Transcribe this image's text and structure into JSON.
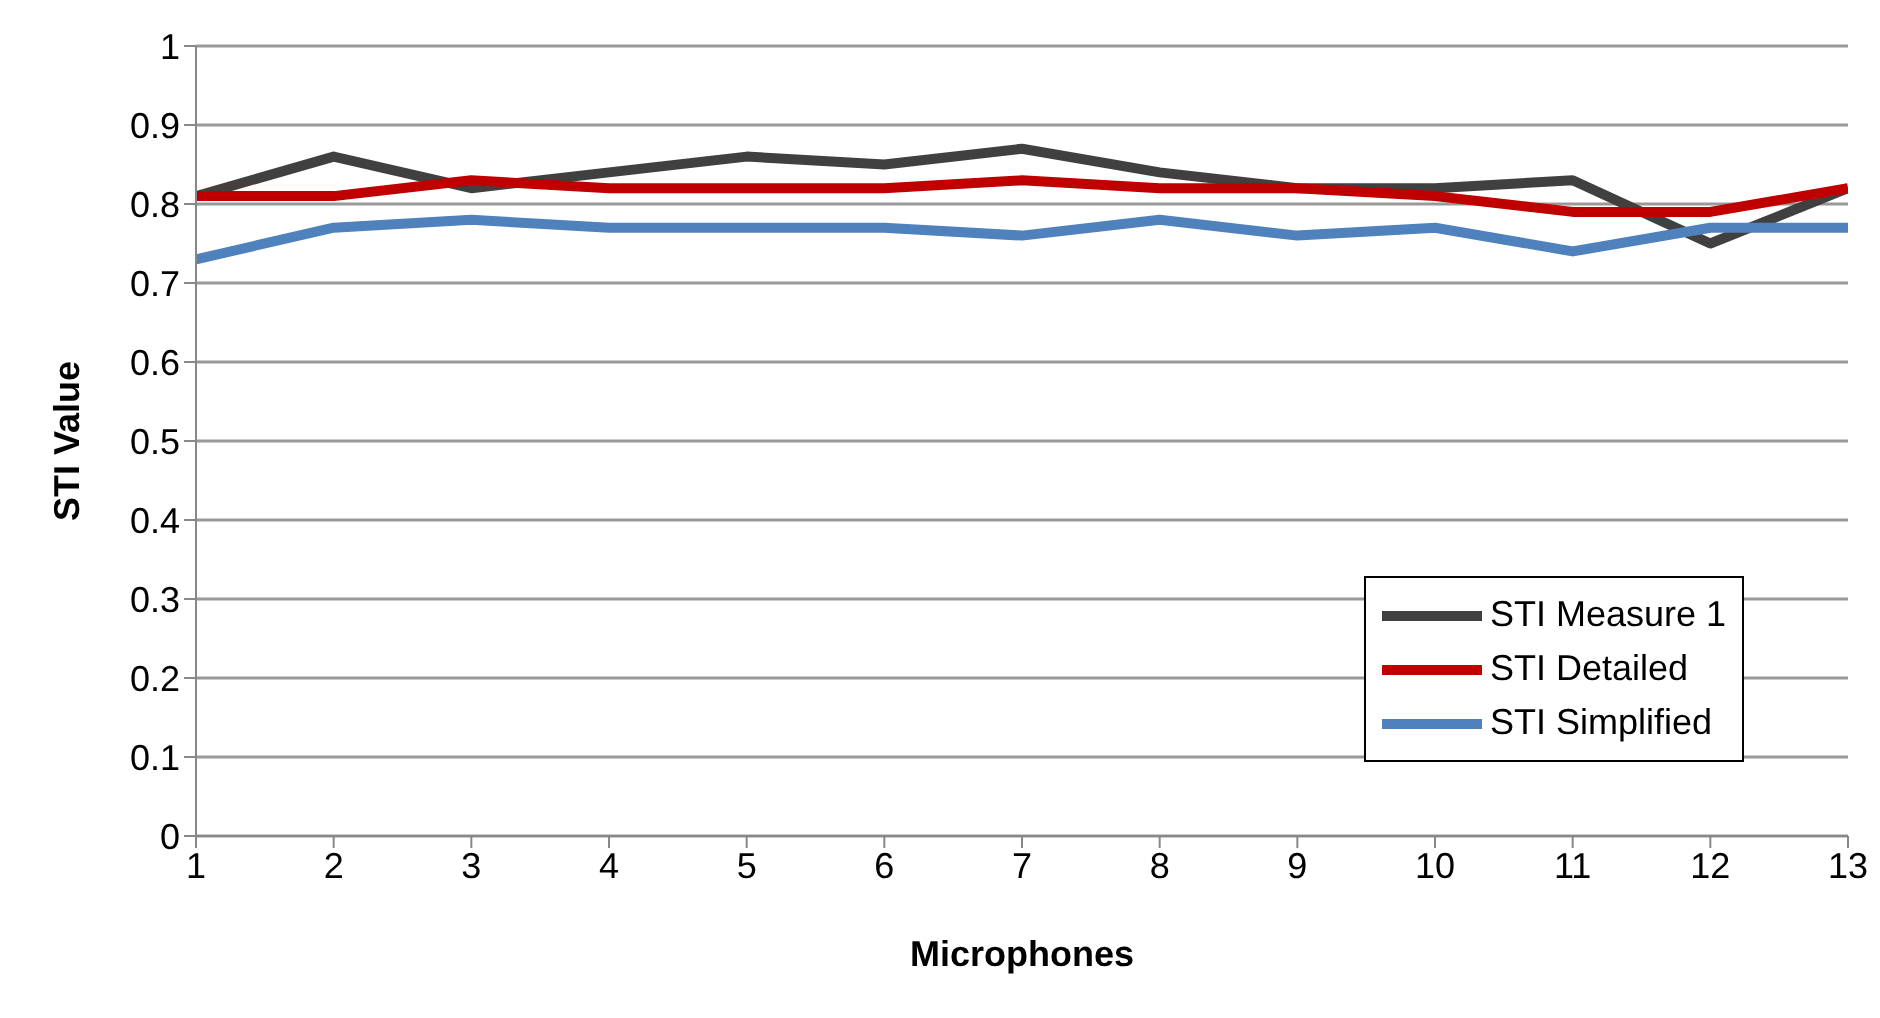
{
  "chart_data": {
    "type": "line",
    "xlabel": "Microphones",
    "ylabel": "STI Value",
    "x": [
      1,
      2,
      3,
      4,
      5,
      6,
      7,
      8,
      9,
      10,
      11,
      12,
      13
    ],
    "xlim": [
      1,
      13
    ],
    "xticks": [
      1,
      2,
      3,
      4,
      5,
      6,
      7,
      8,
      9,
      10,
      11,
      12,
      13
    ],
    "ylim": [
      0,
      1
    ],
    "yticks": [
      0,
      0.1,
      0.2,
      0.3,
      0.4,
      0.5,
      0.6,
      0.7,
      0.8,
      0.9,
      1
    ],
    "grid": "y",
    "legend": "bottom right",
    "marker": "none",
    "line_style": "solid",
    "series": [
      {
        "name": "STI Measure 1",
        "color": "#404040",
        "values": [
          0.81,
          0.86,
          0.82,
          0.84,
          0.86,
          0.85,
          0.87,
          0.84,
          0.82,
          0.82,
          0.83,
          0.75,
          0.82
        ]
      },
      {
        "name": "STI Detailed",
        "color": "#c00000",
        "values": [
          0.81,
          0.81,
          0.83,
          0.82,
          0.82,
          0.82,
          0.83,
          0.82,
          0.82,
          0.81,
          0.79,
          0.79,
          0.82
        ]
      },
      {
        "name": "STI Simplified",
        "color": "#4f81bd",
        "values": [
          0.73,
          0.77,
          0.78,
          0.77,
          0.77,
          0.77,
          0.76,
          0.78,
          0.76,
          0.77,
          0.74,
          0.77,
          0.77
        ]
      }
    ]
  }
}
